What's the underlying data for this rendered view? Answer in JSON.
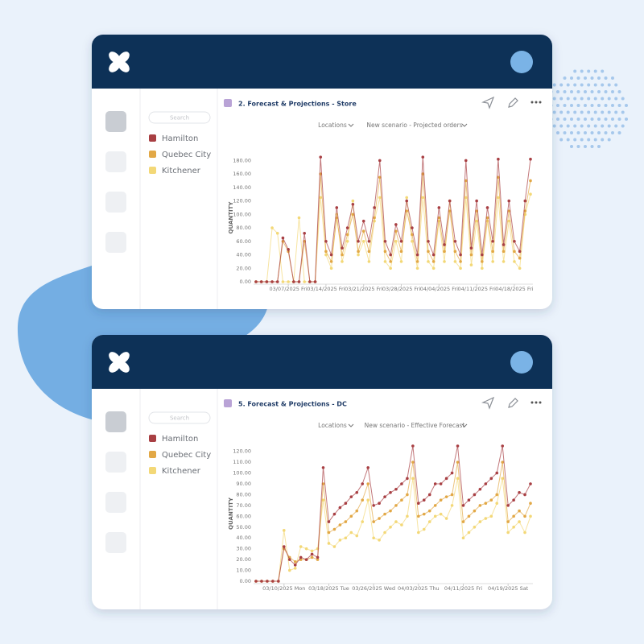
{
  "panels": [
    {
      "search": "Search",
      "filters": [
        "Locations",
        "New scenario - Projected orders"
      ]
    },
    {
      "search": "Search",
      "filters": [
        "Locations",
        "New scenario - Effective Forecast"
      ]
    }
  ],
  "chart_data": [
    {
      "type": "line",
      "title": "2. Forecast & Projections - Store",
      "y_label": "QUANTITY",
      "grid": false,
      "categories": [
        null,
        null,
        null,
        null,
        null,
        null,
        "03/07/2025 Fri",
        null,
        null,
        null,
        null,
        null,
        null,
        "03/14/2025 Fri",
        null,
        null,
        null,
        null,
        null,
        null,
        "03/21/2025 Fri",
        null,
        null,
        null,
        null,
        null,
        null,
        "03/28/2025 Fri",
        null,
        null,
        null,
        null,
        null,
        null,
        "04/04/2025 Fri",
        null,
        null,
        null,
        null,
        null,
        null,
        "04/11/2025 Fri",
        null,
        null,
        null,
        null,
        null,
        null,
        "04/18/2025 Fri",
        null,
        null,
        null
      ],
      "ylim": [
        0,
        190
      ],
      "yticks": [
        {
          "value": 0,
          "label": "0.00"
        },
        {
          "value": 20,
          "label": "20.00"
        },
        {
          "value": 40,
          "label": "40.00"
        },
        {
          "value": 60,
          "label": "60.00"
        },
        {
          "value": 80,
          "label": "80.00"
        },
        {
          "value": 100,
          "label": "100.00"
        },
        {
          "value": 120,
          "label": "120.00"
        },
        {
          "value": 140,
          "label": "140.00"
        },
        {
          "value": 160,
          "label": "160.00"
        },
        {
          "value": 180,
          "label": "180.00"
        }
      ],
      "series": [
        {
          "name": "Hamilton",
          "color": "#a83f43",
          "values": [
            0,
            0,
            0,
            0,
            0,
            65,
            48,
            0,
            0,
            72,
            0,
            0,
            185,
            60,
            40,
            110,
            50,
            80,
            115,
            60,
            90,
            60,
            110,
            180,
            60,
            40,
            85,
            60,
            120,
            80,
            40,
            185,
            60,
            40,
            110,
            55,
            120,
            60,
            40,
            180,
            50,
            120,
            40,
            110,
            60,
            182,
            55,
            120,
            60,
            45,
            120,
            182
          ]
        },
        {
          "name": "Quebec City",
          "color": "#e2a846",
          "values": [
            0,
            0,
            0,
            0,
            0,
            60,
            45,
            0,
            0,
            60,
            0,
            0,
            160,
            45,
            30,
            95,
            40,
            70,
            100,
            45,
            75,
            45,
            95,
            155,
            45,
            30,
            75,
            45,
            105,
            70,
            30,
            160,
            45,
            30,
            95,
            45,
            105,
            45,
            30,
            150,
            40,
            105,
            30,
            95,
            45,
            155,
            45,
            105,
            45,
            35,
            105,
            150
          ]
        },
        {
          "name": "Kitchener",
          "color": "#f3d877",
          "values": [
            0,
            0,
            0,
            80,
            72,
            0,
            0,
            0,
            95,
            0,
            0,
            0,
            125,
            40,
            20,
            100,
            30,
            60,
            120,
            40,
            60,
            30,
            90,
            125,
            30,
            20,
            60,
            30,
            125,
            60,
            20,
            125,
            30,
            20,
            90,
            30,
            120,
            30,
            20,
            125,
            25,
            90,
            20,
            90,
            30,
            125,
            30,
            90,
            30,
            20,
            100,
            130
          ]
        }
      ]
    },
    {
      "type": "line",
      "title": "5. Forecast & Projections - DC",
      "y_label": "QUANTITY",
      "grid": false,
      "categories": [
        null,
        null,
        null,
        null,
        null,
        "03/10/2025 Mon",
        null,
        null,
        null,
        null,
        null,
        null,
        null,
        "03/18/2025 Tue",
        null,
        null,
        null,
        null,
        null,
        null,
        null,
        "03/26/2025 Wed",
        null,
        null,
        null,
        null,
        null,
        null,
        null,
        "04/03/2025 Thu",
        null,
        null,
        null,
        null,
        null,
        null,
        null,
        "04/11/2025 Fri",
        null,
        null,
        null,
        null,
        null,
        null,
        null,
        "04/19/2025 Sat",
        null,
        null,
        null,
        null
      ],
      "ylim": [
        0,
        125
      ],
      "yticks": [
        {
          "value": 0,
          "label": "0.00"
        },
        {
          "value": 10,
          "label": "10.00"
        },
        {
          "value": 20,
          "label": "20.00"
        },
        {
          "value": 30,
          "label": "30.00"
        },
        {
          "value": 40,
          "label": "40.00"
        },
        {
          "value": 50,
          "label": "50.00"
        },
        {
          "value": 60,
          "label": "60.00"
        },
        {
          "value": 70,
          "label": "70.00"
        },
        {
          "value": 80,
          "label": "80.00"
        },
        {
          "value": 90,
          "label": "90.00"
        },
        {
          "value": 100,
          "label": "100.00"
        },
        {
          "value": 110,
          "label": "110.00"
        },
        {
          "value": 120,
          "label": "120.00"
        }
      ],
      "series": [
        {
          "name": "Hamilton",
          "color": "#a83f43",
          "values": [
            0,
            0,
            0,
            0,
            0,
            32,
            20,
            15,
            22,
            20,
            25,
            22,
            105,
            55,
            62,
            68,
            72,
            78,
            82,
            90,
            105,
            70,
            72,
            78,
            82,
            85,
            90,
            95,
            125,
            72,
            75,
            80,
            90,
            90,
            95,
            100,
            125,
            70,
            75,
            80,
            85,
            90,
            95,
            100,
            125,
            70,
            75,
            82,
            80,
            90
          ]
        },
        {
          "name": "Quebec City",
          "color": "#e2a846",
          "values": [
            0,
            0,
            0,
            0,
            0,
            30,
            22,
            18,
            20,
            20,
            22,
            20,
            90,
            45,
            48,
            52,
            55,
            60,
            65,
            75,
            90,
            55,
            58,
            62,
            65,
            70,
            75,
            80,
            110,
            60,
            62,
            65,
            70,
            75,
            78,
            80,
            110,
            55,
            60,
            65,
            70,
            72,
            75,
            80,
            110,
            55,
            60,
            65,
            60,
            72
          ]
        },
        {
          "name": "Kitchener",
          "color": "#f3d877",
          "values": [
            0,
            0,
            0,
            0,
            0,
            47,
            10,
            12,
            32,
            30,
            28,
            30,
            75,
            35,
            32,
            38,
            40,
            45,
            42,
            55,
            75,
            40,
            38,
            45,
            50,
            55,
            52,
            60,
            95,
            45,
            48,
            55,
            60,
            62,
            58,
            70,
            95,
            40,
            45,
            50,
            55,
            58,
            60,
            72,
            95,
            45,
            50,
            55,
            45,
            60
          ]
        }
      ]
    }
  ]
}
